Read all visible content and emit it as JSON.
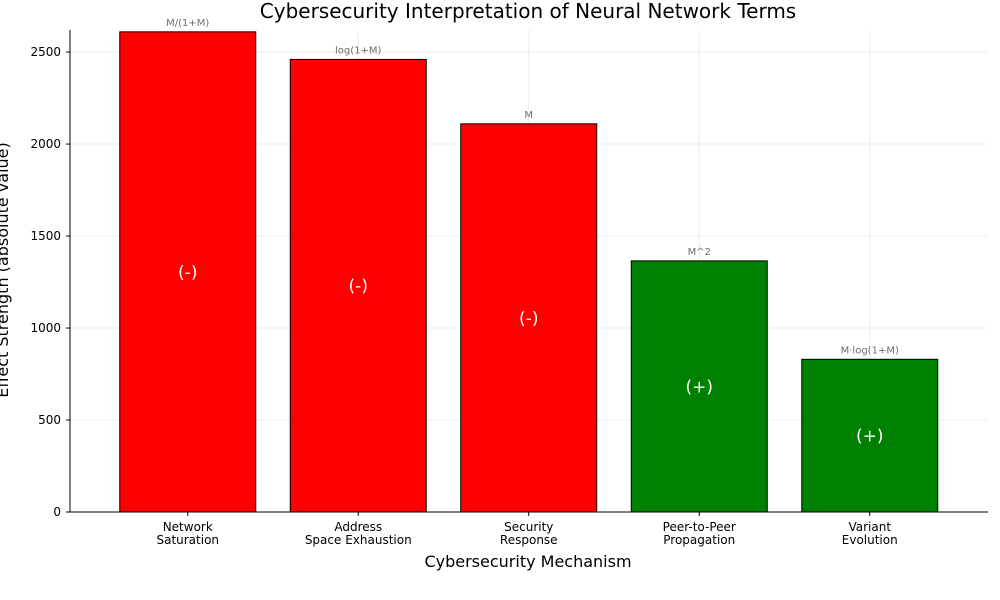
{
  "chart_data": {
    "type": "bar",
    "title": "Cybersecurity Interpretation of Neural Network Terms",
    "xlabel": "Cybersecurity Mechanism",
    "ylabel": "Effect Strength (absolute value)",
    "ylim": [
      0,
      2620
    ],
    "yticks": [
      0,
      500,
      1000,
      1500,
      2000,
      2500
    ],
    "grid": true,
    "categories": [
      [
        "Network",
        "Saturation"
      ],
      [
        "Address",
        "Space Exhaustion"
      ],
      [
        "Security",
        "Response"
      ],
      [
        "Peer-to-Peer",
        "Propagation"
      ],
      [
        "Variant",
        "Evolution"
      ]
    ],
    "values": [
      2610,
      2460,
      2110,
      1365,
      830
    ],
    "formulas": [
      "M/(1+M)",
      "log(1+M)",
      "M",
      "M^2",
      "M·log(1+M)"
    ],
    "signs": [
      "(-)",
      "(-)",
      "(-)",
      "(+)",
      "(+)"
    ],
    "colors": [
      "#ff0000",
      "#ff0000",
      "#ff0000",
      "#008000",
      "#008000"
    ]
  }
}
